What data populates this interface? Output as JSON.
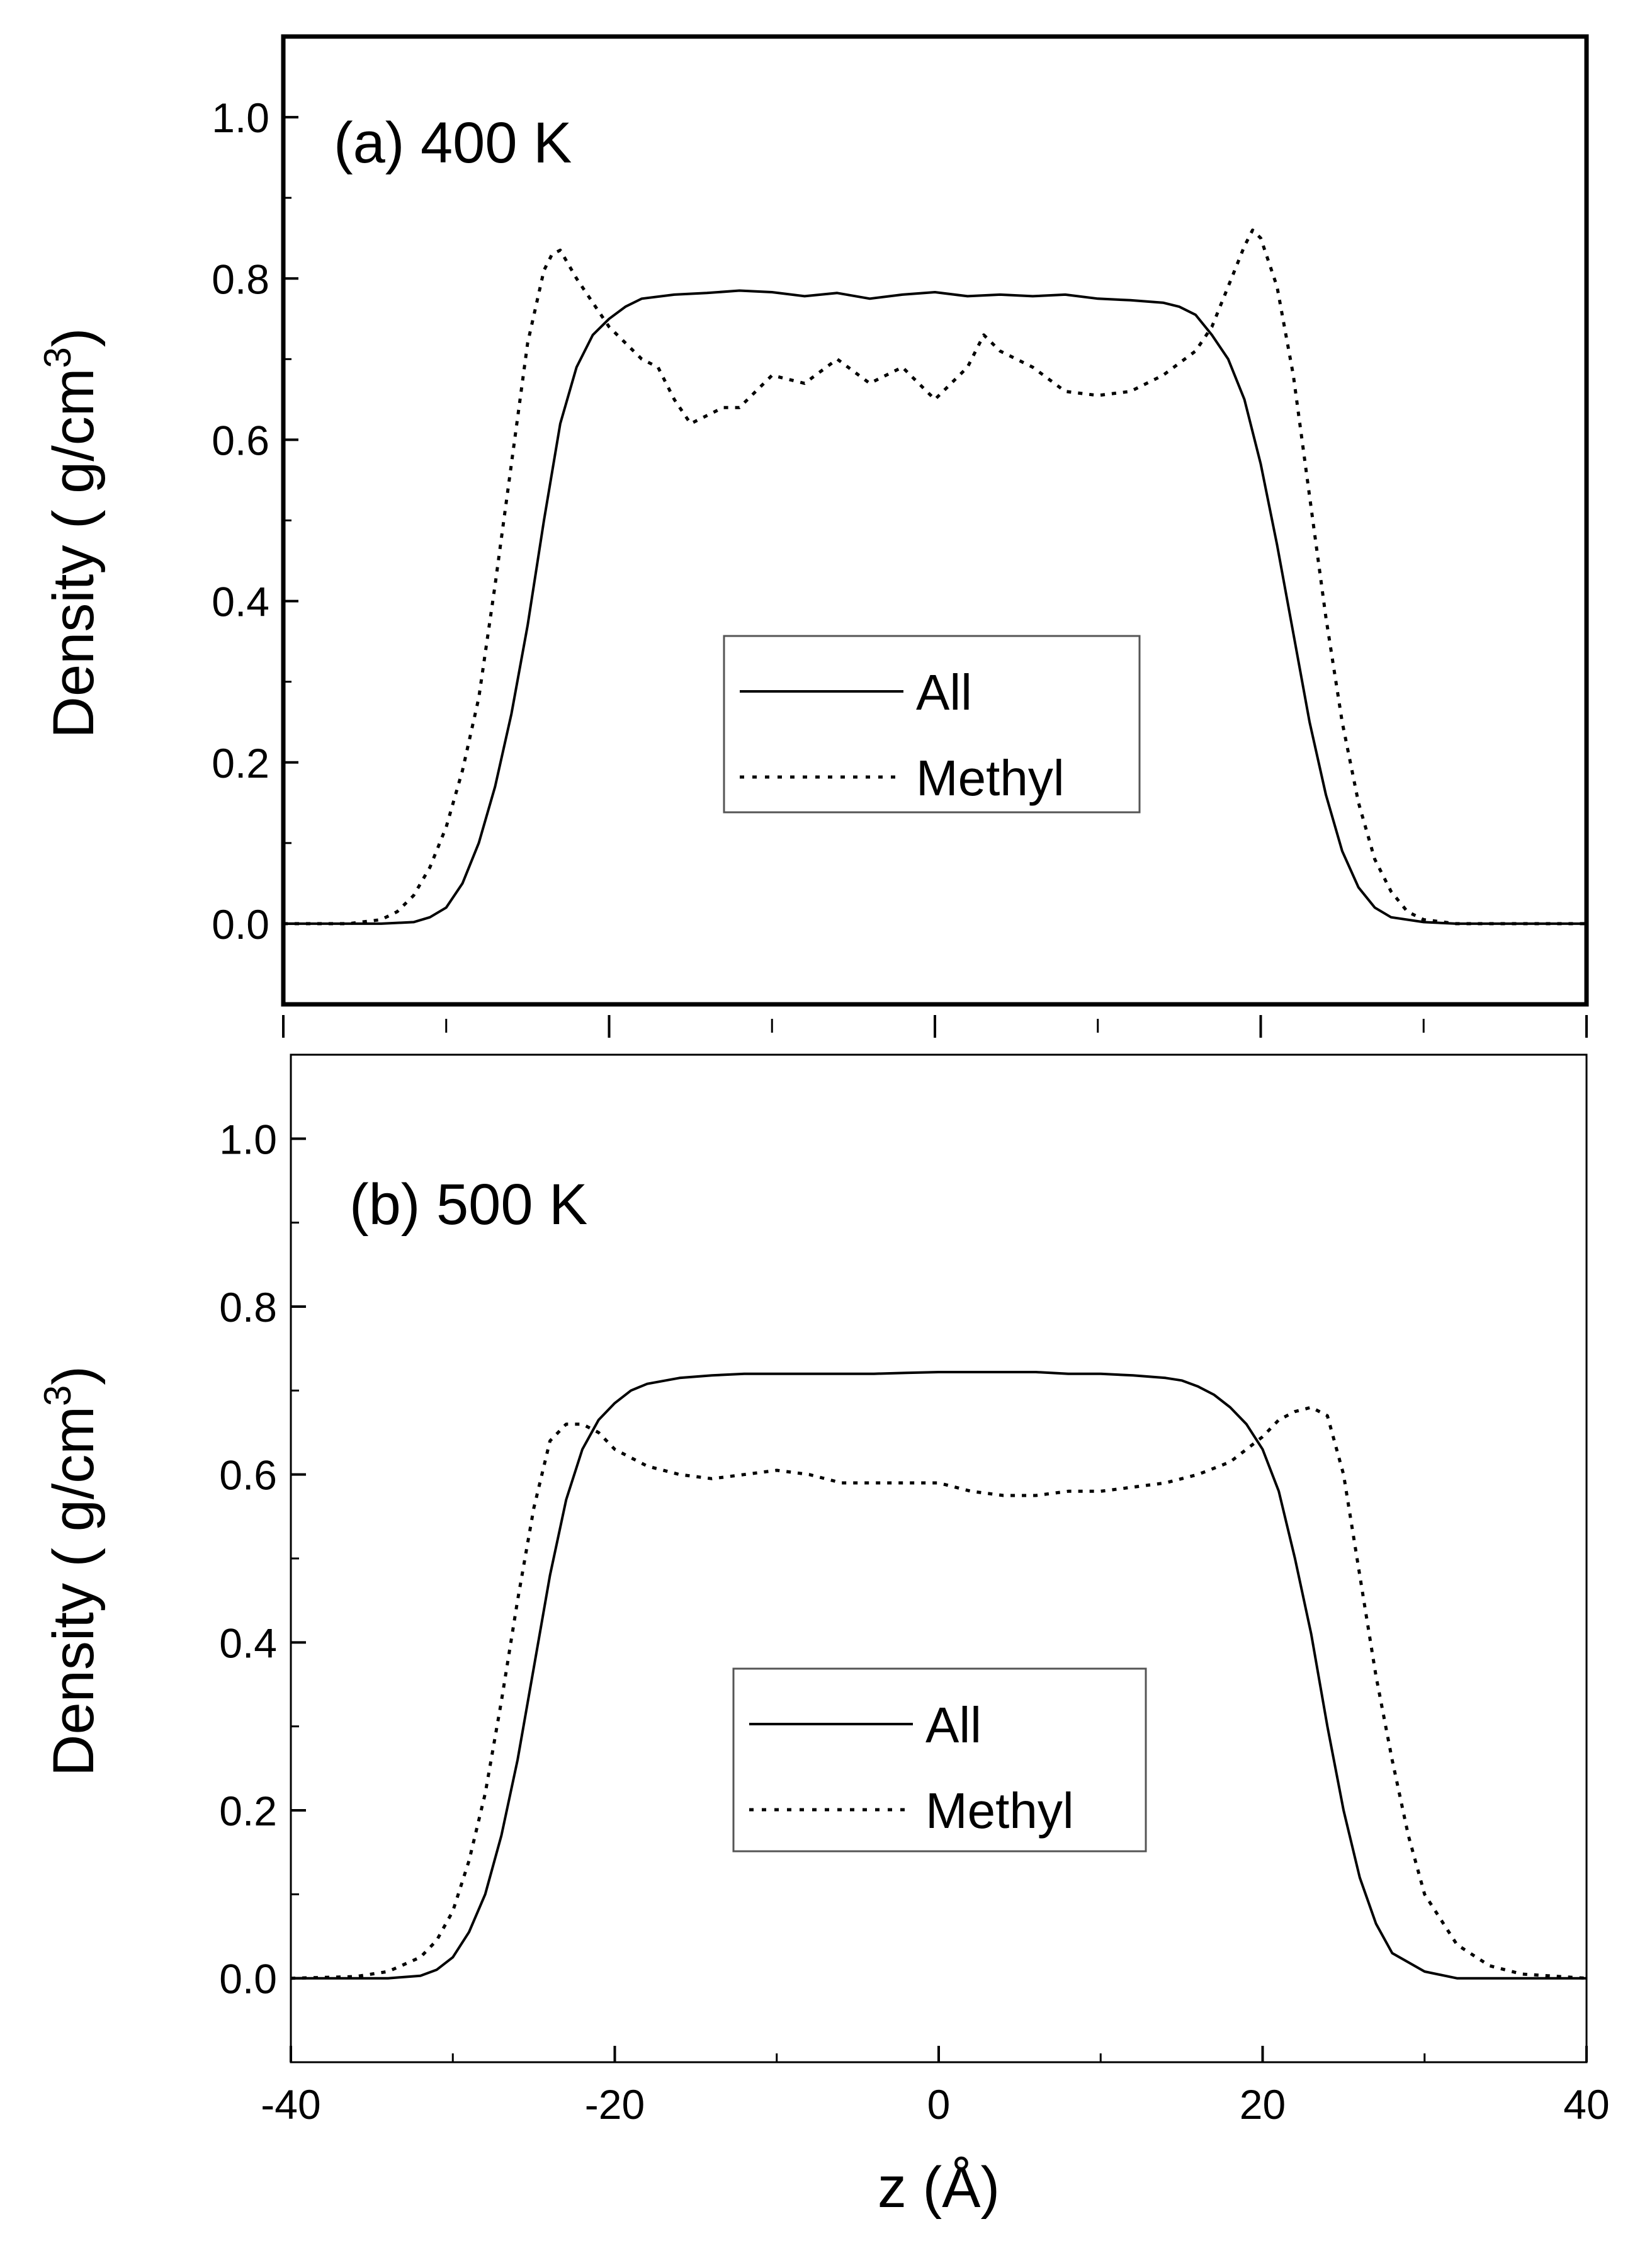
{
  "chart_data": [
    {
      "type": "line",
      "panel_label": "(a) 400 K",
      "xlabel": "",
      "ylabel_main": "Density ( g/cm",
      "ylabel_sup": "3",
      "ylabel_tail": ")",
      "xlim": [
        -40,
        40
      ],
      "ylim": [
        -0.1,
        1.1
      ],
      "xticks": [
        -40,
        -20,
        0,
        20,
        40
      ],
      "yticks": [
        "0.0",
        "0.2",
        "0.4",
        "0.6",
        "0.8",
        "1.0"
      ],
      "show_x_tick_labels": false,
      "legend_placement": "center",
      "series": [
        {
          "name": "All",
          "style": "solid",
          "x": [
            -40,
            -34,
            -32,
            -31,
            -30,
            -29,
            -28,
            -27,
            -26,
            -25,
            -24,
            -23,
            -22,
            -21,
            -20,
            -19,
            -18,
            -16,
            -14,
            -12,
            -10,
            -8,
            -6,
            -4,
            -2,
            0,
            2,
            4,
            6,
            8,
            10,
            12,
            14,
            15,
            16,
            17,
            18,
            19,
            20,
            21,
            22,
            23,
            24,
            25,
            26,
            27,
            28,
            30,
            32,
            34,
            40
          ],
          "values": [
            0.0,
            0.0,
            0.002,
            0.008,
            0.02,
            0.05,
            0.1,
            0.17,
            0.26,
            0.37,
            0.5,
            0.62,
            0.69,
            0.73,
            0.75,
            0.765,
            0.775,
            0.78,
            0.782,
            0.785,
            0.783,
            0.778,
            0.782,
            0.775,
            0.78,
            0.783,
            0.778,
            0.78,
            0.778,
            0.78,
            0.775,
            0.773,
            0.77,
            0.765,
            0.755,
            0.73,
            0.7,
            0.65,
            0.57,
            0.47,
            0.36,
            0.25,
            0.16,
            0.09,
            0.045,
            0.02,
            0.008,
            0.002,
            0.0,
            0.0,
            0.0
          ]
        },
        {
          "name": "Methyl",
          "style": "dotted",
          "x": [
            -40,
            -36,
            -34,
            -33,
            -32,
            -31,
            -30,
            -29,
            -28,
            -27,
            -26,
            -25,
            -24,
            -23.5,
            -23,
            -22,
            -21,
            -20,
            -19,
            -18,
            -17,
            -16,
            -15,
            -14,
            -13,
            -12,
            -10,
            -8,
            -6,
            -4,
            -2,
            0,
            2,
            3,
            4,
            6,
            8,
            10,
            12,
            14,
            16,
            17,
            18,
            19,
            19.5,
            20,
            21,
            22,
            23,
            24,
            25,
            26,
            27,
            28,
            29,
            30,
            32,
            34,
            40
          ],
          "values": [
            0.0,
            0.0,
            0.005,
            0.015,
            0.035,
            0.07,
            0.12,
            0.19,
            0.28,
            0.42,
            0.57,
            0.72,
            0.81,
            0.83,
            0.835,
            0.8,
            0.77,
            0.74,
            0.72,
            0.7,
            0.69,
            0.65,
            0.62,
            0.63,
            0.64,
            0.64,
            0.68,
            0.67,
            0.7,
            0.67,
            0.69,
            0.65,
            0.69,
            0.73,
            0.71,
            0.69,
            0.66,
            0.655,
            0.66,
            0.68,
            0.71,
            0.74,
            0.79,
            0.84,
            0.86,
            0.85,
            0.79,
            0.68,
            0.53,
            0.38,
            0.25,
            0.15,
            0.08,
            0.04,
            0.015,
            0.005,
            0.0,
            0.0,
            0.0
          ]
        }
      ]
    },
    {
      "type": "line",
      "panel_label": "(b) 500 K",
      "xlabel": "z (Å)",
      "ylabel_main": "Density ( g/cm",
      "ylabel_sup": "3",
      "ylabel_tail": ")",
      "xlim": [
        -40,
        40
      ],
      "ylim": [
        -0.1,
        1.1
      ],
      "xticks": [
        -40,
        -20,
        0,
        20,
        40
      ],
      "xtick_labels": [
        "-40",
        "-20",
        "0",
        "20",
        "40"
      ],
      "yticks": [
        "0.0",
        "0.2",
        "0.4",
        "0.6",
        "0.8",
        "1.0"
      ],
      "show_x_tick_labels": true,
      "legend_placement": "center",
      "series": [
        {
          "name": "All",
          "style": "solid",
          "x": [
            -40,
            -34,
            -32,
            -31,
            -30,
            -29,
            -28,
            -27,
            -26,
            -25,
            -24,
            -23,
            -22,
            -21,
            -20,
            -19,
            -18,
            -16,
            -14,
            -12,
            -10,
            -8,
            -6,
            -4,
            -2,
            0,
            2,
            4,
            6,
            8,
            10,
            12,
            14,
            15,
            16,
            17,
            18,
            19,
            20,
            21,
            22,
            23,
            24,
            25,
            26,
            27,
            28,
            30,
            32,
            34,
            40
          ],
          "values": [
            0.0,
            0.0,
            0.003,
            0.01,
            0.025,
            0.055,
            0.1,
            0.17,
            0.26,
            0.37,
            0.48,
            0.57,
            0.63,
            0.665,
            0.685,
            0.7,
            0.708,
            0.715,
            0.718,
            0.72,
            0.72,
            0.72,
            0.72,
            0.72,
            0.721,
            0.722,
            0.722,
            0.722,
            0.722,
            0.72,
            0.72,
            0.718,
            0.715,
            0.712,
            0.705,
            0.695,
            0.68,
            0.66,
            0.63,
            0.58,
            0.5,
            0.41,
            0.3,
            0.2,
            0.12,
            0.065,
            0.03,
            0.008,
            0.0,
            0.0,
            0.0
          ]
        },
        {
          "name": "Methyl",
          "style": "dotted",
          "x": [
            -40,
            -36,
            -34,
            -32,
            -31,
            -30,
            -29,
            -28,
            -27,
            -26,
            -25,
            -24,
            -23,
            -22,
            -21,
            -20,
            -19,
            -18,
            -16,
            -14,
            -12,
            -10,
            -8,
            -6,
            -4,
            -2,
            0,
            2,
            4,
            6,
            8,
            10,
            12,
            14,
            16,
            18,
            19,
            20,
            21,
            22,
            23,
            24,
            25,
            26,
            27,
            28,
            29,
            30,
            32,
            34,
            36,
            40
          ],
          "values": [
            0.0,
            0.002,
            0.008,
            0.025,
            0.045,
            0.08,
            0.14,
            0.22,
            0.33,
            0.45,
            0.56,
            0.64,
            0.66,
            0.66,
            0.65,
            0.63,
            0.62,
            0.61,
            0.6,
            0.595,
            0.6,
            0.605,
            0.6,
            0.59,
            0.59,
            0.59,
            0.59,
            0.58,
            0.575,
            0.575,
            0.58,
            0.58,
            0.585,
            0.59,
            0.6,
            0.615,
            0.63,
            0.645,
            0.665,
            0.675,
            0.68,
            0.67,
            0.6,
            0.48,
            0.36,
            0.26,
            0.17,
            0.1,
            0.04,
            0.015,
            0.005,
            0.0
          ]
        }
      ]
    }
  ]
}
